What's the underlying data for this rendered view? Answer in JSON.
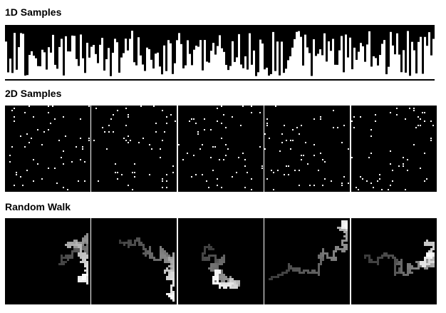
{
  "sections": {
    "samples_1d": "1D Samples",
    "samples_2d": "2D Samples",
    "random_walk": "Random Walk"
  },
  "colors": {
    "background": "#ffffff",
    "panel": "#000000",
    "ink": "#ffffff"
  },
  "panel_count": 5
}
